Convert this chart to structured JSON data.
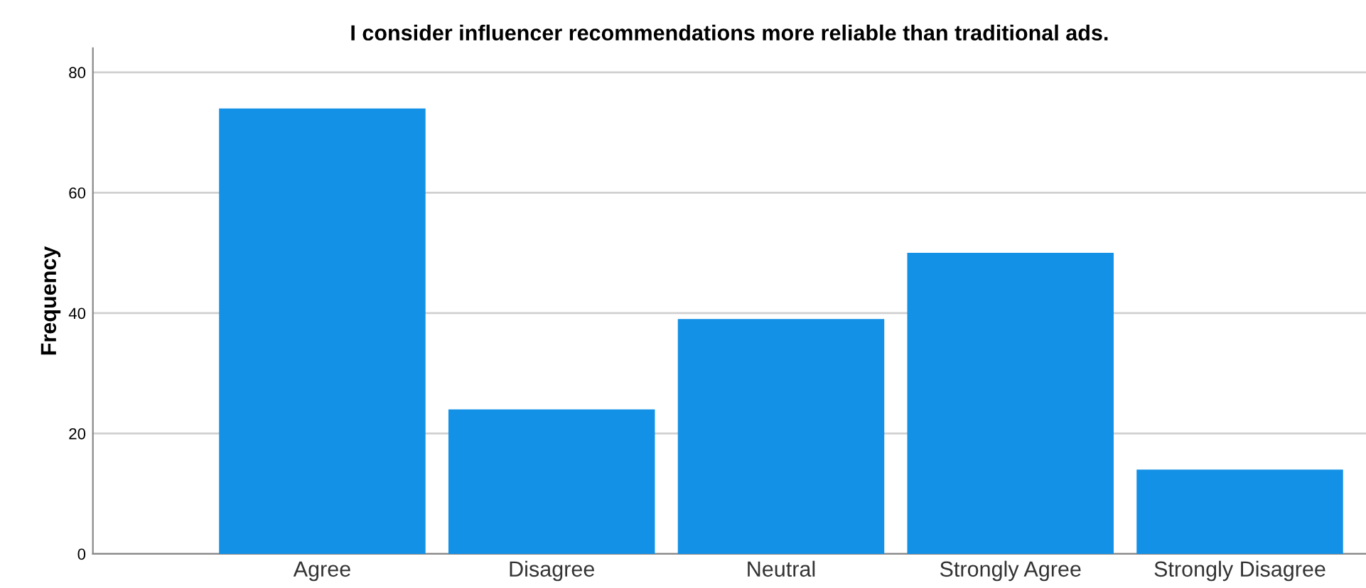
{
  "chart_data": {
    "type": "bar",
    "title": "I consider influencer recommendations more reliable than traditional ads.",
    "ylabel": "Frequency",
    "categories": [
      "Agree",
      "Disagree",
      "Neutral",
      "Strongly Agree",
      "Strongly Disagree"
    ],
    "values": [
      74,
      24,
      39,
      50,
      14
    ],
    "color": "#1391e6",
    "ylim": [
      0,
      84
    ],
    "yticks": [
      0,
      20,
      40,
      60,
      80
    ],
    "grid": "y"
  }
}
